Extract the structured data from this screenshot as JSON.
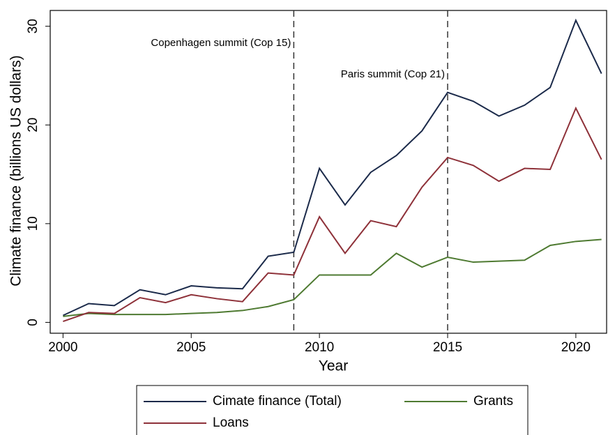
{
  "chart_data": {
    "type": "line",
    "x": [
      2000,
      2001,
      2002,
      2003,
      2004,
      2005,
      2006,
      2007,
      2008,
      2009,
      2010,
      2011,
      2012,
      2013,
      2014,
      2015,
      2016,
      2017,
      2018,
      2019,
      2020,
      2021
    ],
    "series": [
      {
        "name": "Cimate finance (Total)",
        "color": "#1b2a4a",
        "values": [
          0.7,
          1.9,
          1.7,
          3.3,
          2.8,
          3.7,
          3.5,
          3.4,
          6.7,
          7.1,
          15.6,
          11.9,
          15.2,
          16.9,
          19.4,
          23.3,
          22.4,
          20.9,
          22.0,
          23.8,
          30.6,
          25.2
        ]
      },
      {
        "name": "Grants",
        "color": "#4e7a31",
        "values": [
          0.6,
          0.9,
          0.8,
          0.8,
          0.8,
          0.9,
          1.0,
          1.2,
          1.6,
          2.3,
          4.8,
          4.8,
          4.8,
          7.0,
          5.6,
          6.6,
          6.1,
          6.2,
          6.3,
          7.8,
          8.2,
          8.4
        ]
      },
      {
        "name": "Loans",
        "color": "#8e3139",
        "values": [
          0.1,
          1.0,
          0.9,
          2.5,
          2.0,
          2.8,
          2.4,
          2.1,
          5.0,
          4.8,
          10.7,
          7.0,
          10.3,
          9.7,
          13.7,
          16.7,
          15.9,
          14.3,
          15.6,
          15.5,
          21.7,
          16.5
        ]
      }
    ],
    "xlabel": "Year",
    "ylabel": "Climate finance (billions US dollars)",
    "xlim": [
      1999.5,
      2021.2
    ],
    "ylim": [
      -1.1,
      31.6
    ],
    "xticks": [
      2000,
      2005,
      2010,
      2015,
      2020
    ],
    "yticks": [
      0,
      10,
      20,
      30
    ],
    "annotations": [
      {
        "x": 2009,
        "label": "Copenhagen summit (Cop 15)"
      },
      {
        "x": 2015,
        "label": "Paris summit (Cop 21)"
      }
    ],
    "legend": "bottom"
  }
}
